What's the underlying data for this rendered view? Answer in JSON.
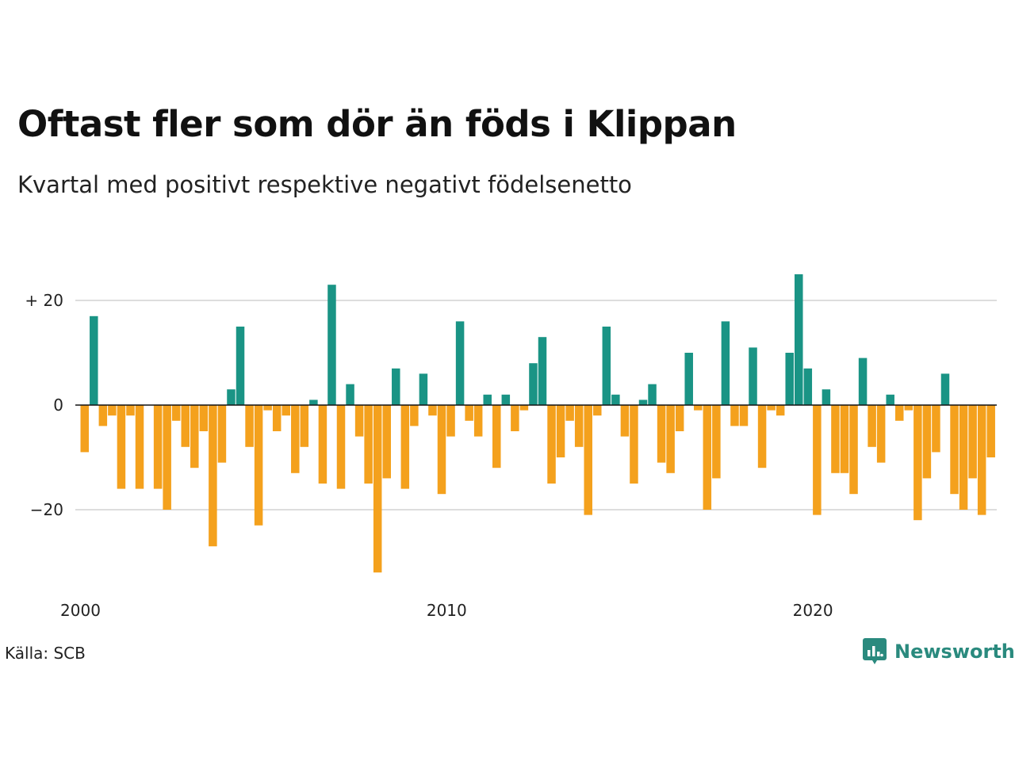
{
  "header": {
    "title": "Oftast fler som dör än föds i Klippan",
    "subtitle": "Kvartal med positivt respektive negativt födelsenetto"
  },
  "footer": {
    "source": "Källa: SCB",
    "brand": "Newsworthy"
  },
  "colors": {
    "positive": "#1a9485",
    "negative": "#f4a11d",
    "grid": "#dddddd",
    "brand": "#2a8a7e"
  },
  "chart_data": {
    "type": "bar",
    "title": "Oftast fler som dör än föds i Klippan",
    "subtitle": "Kvartal med positivt respektive negativt födelsenetto",
    "xlabel": "",
    "ylabel": "",
    "x_start": "2000 Q1",
    "x_ticks": [
      "2000",
      "2010",
      "2020"
    ],
    "y_ticks": [
      {
        "value": 20,
        "label": "+ 20"
      },
      {
        "value": 0,
        "label": "0"
      },
      {
        "value": -20,
        "label": "−20"
      }
    ],
    "ylim": [
      -33,
      27
    ],
    "grid": true,
    "values": [
      -9,
      17,
      -4,
      -2,
      -16,
      -2,
      -16,
      0,
      -16,
      -20,
      -3,
      -8,
      -12,
      -5,
      -27,
      -11,
      3,
      15,
      -8,
      -23,
      -1,
      -5,
      -2,
      -13,
      -8,
      1,
      -15,
      23,
      -16,
      4,
      -6,
      -15,
      -32,
      -14,
      7,
      -16,
      -4,
      6,
      -2,
      -17,
      -6,
      16,
      -3,
      -6,
      2,
      -12,
      2,
      -5,
      -1,
      8,
      13,
      -15,
      -10,
      -3,
      -8,
      -21,
      -2,
      15,
      2,
      -6,
      -15,
      1,
      4,
      -11,
      -13,
      -5,
      10,
      -1,
      -20,
      -14,
      16,
      -4,
      -4,
      11,
      -12,
      -1,
      -2,
      10,
      25,
      7,
      -21,
      3,
      -13,
      -13,
      -17,
      9,
      -8,
      -11,
      2,
      -3,
      -1,
      -22,
      -14,
      -9,
      6,
      -17,
      -20,
      -14,
      -21,
      -10
    ]
  }
}
